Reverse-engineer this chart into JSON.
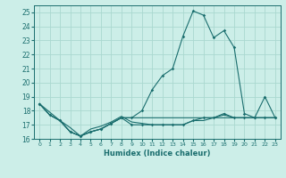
{
  "xlabel": "Humidex (Indice chaleur)",
  "bg_color": "#cceee8",
  "grid_color": "#aad8d0",
  "line_color": "#1a6e6e",
  "xlim": [
    -0.5,
    23.5
  ],
  "ylim": [
    16,
    25.5
  ],
  "xticks": [
    0,
    1,
    2,
    3,
    4,
    5,
    6,
    7,
    8,
    9,
    10,
    11,
    12,
    13,
    14,
    15,
    16,
    17,
    18,
    19,
    20,
    21,
    22,
    23
  ],
  "yticks": [
    16,
    17,
    18,
    19,
    20,
    21,
    22,
    23,
    24,
    25
  ],
  "series": [
    {
      "x": [
        0,
        1,
        2,
        3,
        4,
        5,
        6,
        7,
        8,
        9,
        10,
        11,
        12,
        13,
        14,
        15,
        16,
        17,
        18,
        19,
        20,
        21,
        22,
        23
      ],
      "y": [
        18.5,
        17.7,
        17.3,
        16.5,
        16.2,
        16.5,
        16.7,
        17.1,
        17.5,
        17.0,
        17.0,
        17.0,
        17.0,
        17.0,
        17.0,
        17.3,
        17.5,
        17.5,
        17.8,
        17.5,
        17.5,
        17.5,
        17.5,
        17.5
      ],
      "marker": true
    },
    {
      "x": [
        0,
        1,
        2,
        3,
        4,
        5,
        6,
        7,
        8,
        9,
        10,
        11,
        12,
        13,
        14,
        15,
        16,
        17,
        18,
        19,
        20,
        21,
        22,
        23
      ],
      "y": [
        18.5,
        17.7,
        17.3,
        16.5,
        16.2,
        16.5,
        16.7,
        17.1,
        17.5,
        17.5,
        18.0,
        19.5,
        20.5,
        21.0,
        23.3,
        25.1,
        24.8,
        23.2,
        23.7,
        22.5,
        17.8,
        17.5,
        19.0,
        17.5
      ],
      "marker": true
    },
    {
      "x": [
        0,
        2,
        3,
        4,
        5,
        6,
        7,
        8,
        9,
        10,
        19,
        20,
        21,
        22,
        23
      ],
      "y": [
        18.5,
        17.3,
        16.5,
        16.2,
        16.5,
        16.7,
        17.1,
        17.5,
        17.5,
        17.5,
        17.5,
        17.5,
        17.5,
        17.5,
        17.5
      ],
      "marker": false
    },
    {
      "x": [
        0,
        1,
        2,
        3,
        4,
        5,
        6,
        7,
        8,
        9,
        10,
        11,
        12,
        13,
        14,
        15,
        16,
        17,
        18,
        19,
        20,
        21,
        22,
        23
      ],
      "y": [
        18.5,
        17.7,
        17.3,
        16.8,
        16.2,
        16.7,
        16.9,
        17.2,
        17.6,
        17.2,
        17.1,
        17.0,
        17.0,
        17.0,
        17.0,
        17.3,
        17.3,
        17.5,
        17.7,
        17.5,
        17.5,
        17.5,
        17.5,
        17.5
      ],
      "marker": false
    }
  ]
}
